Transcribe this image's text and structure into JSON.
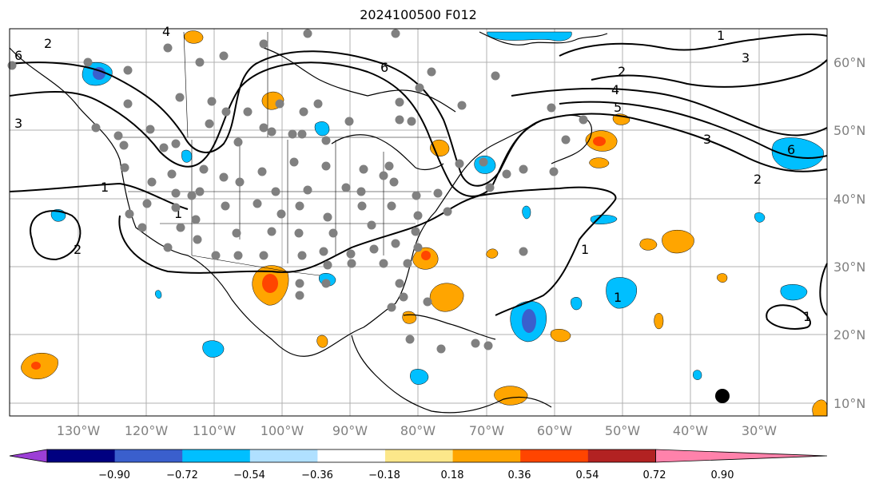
{
  "title": "2024100500 F012",
  "lat_labels": [
    "60°N",
    "50°N",
    "40°N",
    "30°N",
    "20°N",
    "10°N"
  ],
  "lon_labels": [
    "130°W",
    "120°W",
    "110°W",
    "100°W",
    "90°W",
    "80°W",
    "70°W",
    "60°W",
    "50°W",
    "40°W",
    "30°W"
  ],
  "colorbar": {
    "tick_labels": [
      "−0.90",
      "−0.72",
      "−0.54",
      "−0.36",
      "−0.18",
      "0.18",
      "0.36",
      "0.54",
      "0.72",
      "0.90"
    ],
    "colors": [
      "#9c3fd6",
      "#000080",
      "#3a5fcd",
      "#00bfff",
      "#b0e0ff",
      "#ffffff",
      "#fce78a",
      "#ffa500",
      "#ff4500",
      "#b22222",
      "#ff82ab"
    ]
  },
  "contour_labels": [
    "1",
    "2",
    "3",
    "4",
    "5",
    "6"
  ],
  "colors": {
    "grid": "#b0b0b0",
    "station": "#808080",
    "label": "#808080"
  }
}
